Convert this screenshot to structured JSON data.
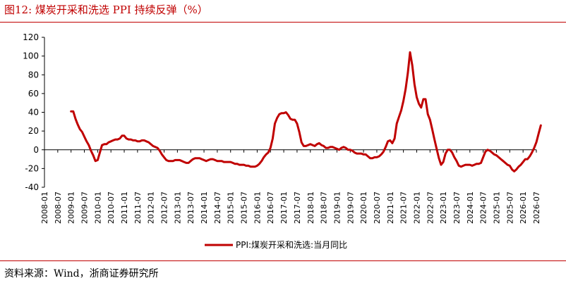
{
  "header": {
    "title": "图12:  煤炭开采和洗选 PPI 持续反弹（%）"
  },
  "footer": {
    "source": "资料来源：Wind，浙商证券研究所"
  },
  "colors": {
    "series": "#c00000",
    "axis": "#000000",
    "text": "#000000"
  },
  "chart_data": {
    "type": "line",
    "title": "",
    "xlabel": "",
    "ylabel": "",
    "ylim": [
      -40,
      120
    ],
    "yticks": [
      -40,
      -20,
      0,
      20,
      40,
      60,
      80,
      100,
      120
    ],
    "xlim": [
      "2008-01",
      "2026-07"
    ],
    "xticks": [
      "2008-01",
      "2008-07",
      "2009-01",
      "2009-07",
      "2010-01",
      "2010-07",
      "2011-01",
      "2011-07",
      "2012-01",
      "2012-07",
      "2013-01",
      "2013-07",
      "2014-01",
      "2014-07",
      "2015-01",
      "2015-07",
      "2016-01",
      "2016-07",
      "2017-01",
      "2017-07",
      "2018-01",
      "2018-07",
      "2019-01",
      "2019-07",
      "2020-01",
      "2020-07",
      "2021-01",
      "2021-07",
      "2022-01",
      "2022-07",
      "2023-01",
      "2023-07",
      "2024-01",
      "2024-07",
      "2025-01",
      "2025-07",
      "2026-01",
      "2026-07"
    ],
    "grid": false,
    "legend": "bottom-center",
    "series": [
      {
        "name": "PPI:煤炭开采和洗选:当月同比",
        "points": [
          [
            "2009-01",
            41
          ],
          [
            "2009-02",
            41
          ],
          [
            "2009-03",
            33
          ],
          [
            "2009-04",
            27
          ],
          [
            "2009-05",
            22
          ],
          [
            "2009-06",
            19
          ],
          [
            "2009-07",
            14
          ],
          [
            "2009-08",
            9
          ],
          [
            "2009-09",
            5
          ],
          [
            "2009-10",
            -1
          ],
          [
            "2009-11",
            -6
          ],
          [
            "2009-12",
            -12
          ],
          [
            "2010-01",
            -11
          ],
          [
            "2010-02",
            -3
          ],
          [
            "2010-03",
            5
          ],
          [
            "2010-04",
            6
          ],
          [
            "2010-05",
            6
          ],
          [
            "2010-06",
            8
          ],
          [
            "2010-07",
            9
          ],
          [
            "2010-08",
            10
          ],
          [
            "2010-09",
            11
          ],
          [
            "2010-10",
            11
          ],
          [
            "2010-11",
            12
          ],
          [
            "2010-12",
            15
          ],
          [
            "2011-01",
            15
          ],
          [
            "2011-02",
            12
          ],
          [
            "2011-03",
            11
          ],
          [
            "2011-04",
            11
          ],
          [
            "2011-05",
            10
          ],
          [
            "2011-06",
            10
          ],
          [
            "2011-07",
            9
          ],
          [
            "2011-08",
            9
          ],
          [
            "2011-09",
            10
          ],
          [
            "2011-10",
            10
          ],
          [
            "2011-11",
            9
          ],
          [
            "2011-12",
            8
          ],
          [
            "2012-01",
            6
          ],
          [
            "2012-02",
            4
          ],
          [
            "2012-03",
            3
          ],
          [
            "2012-04",
            2
          ],
          [
            "2012-05",
            -1
          ],
          [
            "2012-06",
            -5
          ],
          [
            "2012-07",
            -8
          ],
          [
            "2012-08",
            -11
          ],
          [
            "2012-09",
            -12
          ],
          [
            "2012-10",
            -12
          ],
          [
            "2012-11",
            -12
          ],
          [
            "2012-12",
            -11
          ],
          [
            "2013-01",
            -11
          ],
          [
            "2013-02",
            -11
          ],
          [
            "2013-03",
            -12
          ],
          [
            "2013-04",
            -13
          ],
          [
            "2013-05",
            -14
          ],
          [
            "2013-06",
            -14
          ],
          [
            "2013-07",
            -12
          ],
          [
            "2013-08",
            -10
          ],
          [
            "2013-09",
            -9
          ],
          [
            "2013-10",
            -9
          ],
          [
            "2013-11",
            -9
          ],
          [
            "2013-12",
            -10
          ],
          [
            "2014-01",
            -11
          ],
          [
            "2014-02",
            -12
          ],
          [
            "2014-03",
            -11
          ],
          [
            "2014-04",
            -10
          ],
          [
            "2014-05",
            -10
          ],
          [
            "2014-06",
            -11
          ],
          [
            "2014-07",
            -12
          ],
          [
            "2014-08",
            -12
          ],
          [
            "2014-09",
            -12
          ],
          [
            "2014-10",
            -13
          ],
          [
            "2014-11",
            -13
          ],
          [
            "2014-12",
            -13
          ],
          [
            "2015-01",
            -13
          ],
          [
            "2015-02",
            -14
          ],
          [
            "2015-03",
            -15
          ],
          [
            "2015-04",
            -15
          ],
          [
            "2015-05",
            -16
          ],
          [
            "2015-06",
            -16
          ],
          [
            "2015-07",
            -16
          ],
          [
            "2015-08",
            -17
          ],
          [
            "2015-09",
            -17
          ],
          [
            "2015-10",
            -18
          ],
          [
            "2015-11",
            -18
          ],
          [
            "2015-12",
            -18
          ],
          [
            "2016-01",
            -17
          ],
          [
            "2016-02",
            -15
          ],
          [
            "2016-03",
            -12
          ],
          [
            "2016-04",
            -8
          ],
          [
            "2016-05",
            -5
          ],
          [
            "2016-06",
            -3
          ],
          [
            "2016-07",
            2
          ],
          [
            "2016-08",
            12
          ],
          [
            "2016-09",
            28
          ],
          [
            "2016-10",
            34
          ],
          [
            "2016-11",
            38
          ],
          [
            "2016-12",
            39
          ],
          [
            "2017-01",
            39
          ],
          [
            "2017-02",
            40
          ],
          [
            "2017-03",
            37
          ],
          [
            "2017-04",
            33
          ],
          [
            "2017-05",
            32
          ],
          [
            "2017-06",
            32
          ],
          [
            "2017-07",
            28
          ],
          [
            "2017-08",
            19
          ],
          [
            "2017-09",
            8
          ],
          [
            "2017-10",
            4
          ],
          [
            "2017-11",
            4
          ],
          [
            "2017-12",
            5
          ],
          [
            "2018-01",
            6
          ],
          [
            "2018-02",
            5
          ],
          [
            "2018-03",
            4
          ],
          [
            "2018-04",
            6
          ],
          [
            "2018-05",
            7
          ],
          [
            "2018-06",
            5
          ],
          [
            "2018-07",
            4
          ],
          [
            "2018-08",
            2
          ],
          [
            "2018-09",
            2
          ],
          [
            "2018-10",
            3
          ],
          [
            "2018-11",
            3
          ],
          [
            "2018-12",
            2
          ],
          [
            "2019-01",
            1
          ],
          [
            "2019-02",
            0
          ],
          [
            "2019-03",
            2
          ],
          [
            "2019-04",
            3
          ],
          [
            "2019-05",
            2
          ],
          [
            "2019-06",
            0
          ],
          [
            "2019-07",
            0
          ],
          [
            "2019-08",
            -1
          ],
          [
            "2019-09",
            -3
          ],
          [
            "2019-10",
            -4
          ],
          [
            "2019-11",
            -4
          ],
          [
            "2019-12",
            -4
          ],
          [
            "2020-01",
            -5
          ],
          [
            "2020-02",
            -5
          ],
          [
            "2020-03",
            -7
          ],
          [
            "2020-04",
            -9
          ],
          [
            "2020-05",
            -9
          ],
          [
            "2020-06",
            -8
          ],
          [
            "2020-07",
            -8
          ],
          [
            "2020-08",
            -7
          ],
          [
            "2020-09",
            -5
          ],
          [
            "2020-10",
            -2
          ],
          [
            "2020-11",
            3
          ],
          [
            "2020-12",
            9
          ],
          [
            "2021-01",
            10
          ],
          [
            "2021-02",
            7
          ],
          [
            "2021-03",
            12
          ],
          [
            "2021-04",
            28
          ],
          [
            "2021-05",
            35
          ],
          [
            "2021-06",
            42
          ],
          [
            "2021-07",
            52
          ],
          [
            "2021-08",
            65
          ],
          [
            "2021-09",
            82
          ],
          [
            "2021-10",
            104
          ],
          [
            "2021-11",
            90
          ],
          [
            "2021-12",
            70
          ],
          [
            "2022-01",
            56
          ],
          [
            "2022-02",
            49
          ],
          [
            "2022-03",
            45
          ],
          [
            "2022-04",
            54
          ],
          [
            "2022-05",
            54
          ],
          [
            "2022-06",
            38
          ],
          [
            "2022-07",
            32
          ],
          [
            "2022-08",
            22
          ],
          [
            "2022-09",
            11
          ],
          [
            "2022-10",
            1
          ],
          [
            "2022-11",
            -9
          ],
          [
            "2022-12",
            -16
          ],
          [
            "2023-01",
            -13
          ],
          [
            "2023-02",
            -4
          ],
          [
            "2023-03",
            0
          ],
          [
            "2023-04",
            0
          ],
          [
            "2023-05",
            -3
          ],
          [
            "2023-06",
            -8
          ],
          [
            "2023-07",
            -12
          ],
          [
            "2023-08",
            -17
          ],
          [
            "2023-09",
            -18
          ],
          [
            "2023-10",
            -17
          ],
          [
            "2023-11",
            -16
          ],
          [
            "2023-12",
            -16
          ],
          [
            "2024-01",
            -16
          ],
          [
            "2024-02",
            -17
          ],
          [
            "2024-03",
            -16
          ],
          [
            "2024-04",
            -15
          ],
          [
            "2024-05",
            -15
          ],
          [
            "2024-06",
            -14
          ],
          [
            "2024-07",
            -8
          ],
          [
            "2024-08",
            -2
          ],
          [
            "2024-09",
            0
          ],
          [
            "2024-10",
            -1
          ],
          [
            "2024-11",
            -3
          ],
          [
            "2024-12",
            -5
          ],
          [
            "2025-01",
            -6
          ],
          [
            "2025-02",
            -8
          ],
          [
            "2025-03",
            -10
          ],
          [
            "2025-04",
            -12
          ],
          [
            "2025-05",
            -14
          ],
          [
            "2025-06",
            -16
          ],
          [
            "2025-07",
            -17
          ],
          [
            "2025-08",
            -21
          ],
          [
            "2025-09",
            -23
          ],
          [
            "2025-10",
            -21
          ],
          [
            "2025-11",
            -18
          ],
          [
            "2025-12",
            -16
          ],
          [
            "2026-01",
            -13
          ],
          [
            "2026-02",
            -10
          ],
          [
            "2026-03",
            -10
          ],
          [
            "2026-04",
            -7
          ],
          [
            "2026-05",
            -3
          ],
          [
            "2026-06",
            2
          ],
          [
            "2026-07",
            8
          ],
          [
            "2026-08",
            17
          ],
          [
            "2026-09",
            26
          ]
        ]
      }
    ]
  }
}
